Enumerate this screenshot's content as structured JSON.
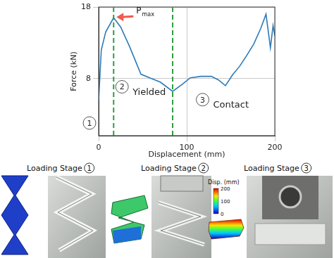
{
  "chart_data": {
    "type": "line",
    "xlabel": "Displacement (mm)",
    "ylabel": "Force (kN)",
    "x": [
      0,
      3,
      8,
      17,
      25,
      35,
      48,
      60,
      70,
      84,
      95,
      104,
      116,
      128,
      136,
      144,
      152,
      160,
      168,
      176,
      184,
      190,
      195,
      198,
      200
    ],
    "values": [
      5,
      12,
      14.5,
      16.5,
      15.2,
      12.5,
      8.6,
      8,
      7.5,
      6.2,
      7.2,
      8.1,
      8.3,
      8.3,
      7.8,
      7,
      8.5,
      9.7,
      11.2,
      12.8,
      15,
      17,
      12.3,
      15.4,
      14
    ],
    "color": "#2b7bba",
    "xlim": [
      0,
      200
    ],
    "xticks": [
      0,
      100,
      200
    ],
    "ylim": [
      0,
      18
    ],
    "yticks": [
      8,
      18
    ],
    "grid": true,
    "stage_bounds": [
      17,
      84
    ],
    "regions": [
      {
        "label": "1"
      },
      {
        "label": "2",
        "text": "Yielded"
      },
      {
        "label": "3",
        "text": "Contact"
      }
    ],
    "annotations": [
      {
        "text": "P",
        "subscript": "max",
        "x": 17,
        "y": 16.5
      }
    ]
  },
  "panels": [
    {
      "title": "Loading Stage",
      "stage": "1"
    },
    {
      "title": "Loading Stage",
      "stage": "2"
    },
    {
      "title": "Loading Stage",
      "stage": "3"
    }
  ],
  "colorbar": {
    "label": "Disp. (mm)",
    "range": [
      0,
      200
    ],
    "ticks": [
      0,
      100,
      200
    ]
  }
}
